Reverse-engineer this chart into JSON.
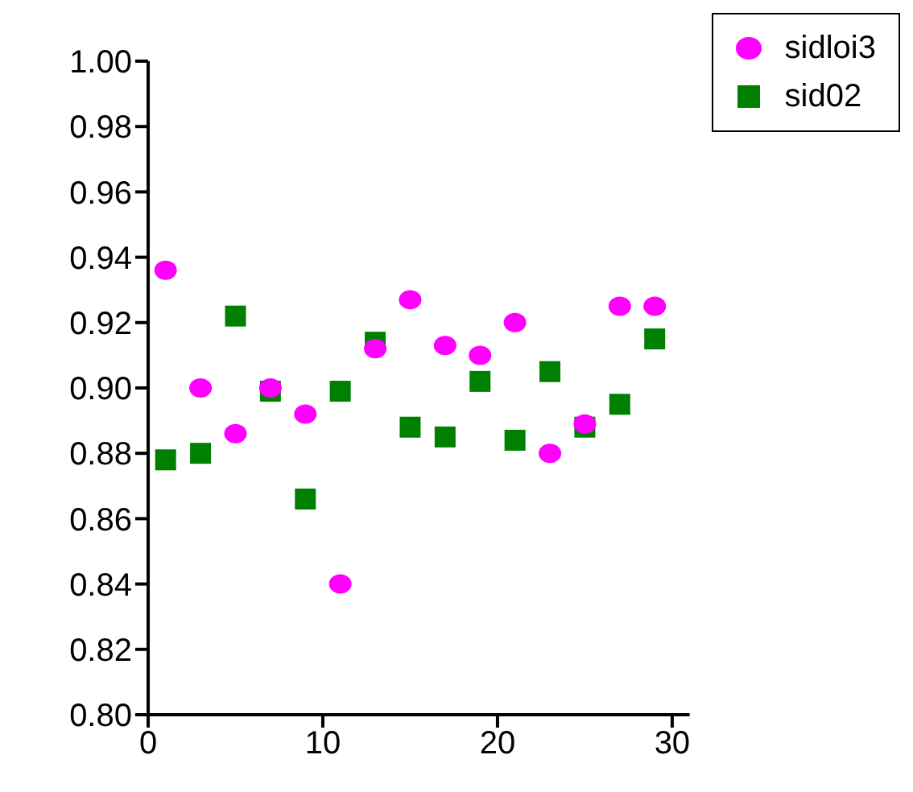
{
  "chart_data": {
    "type": "scatter",
    "x": [
      1,
      3,
      5,
      7,
      9,
      11,
      13,
      15,
      17,
      19,
      21,
      23,
      25,
      27,
      29
    ],
    "series": [
      {
        "name": "sidloi3",
        "color": "#ff00ff",
        "marker": "circle",
        "values": [
          0.936,
          0.9,
          0.886,
          0.9,
          0.892,
          0.84,
          0.912,
          0.927,
          0.913,
          0.91,
          0.92,
          0.88,
          0.889,
          0.925,
          0.925
        ]
      },
      {
        "name": "sid02",
        "color": "#008000",
        "marker": "square",
        "values": [
          0.878,
          0.88,
          0.922,
          0.899,
          0.866,
          0.899,
          0.914,
          0.888,
          0.885,
          0.902,
          0.884,
          0.905,
          0.888,
          0.895,
          0.915
        ]
      }
    ],
    "xlim": [
      0,
      31
    ],
    "xticks": [
      0,
      10,
      20,
      30
    ],
    "ylim": [
      0.8,
      1.0
    ],
    "yticks": [
      {
        "value": 0.8,
        "label": "0.80"
      },
      0.82,
      0.84,
      0.86,
      0.88,
      {
        "value": 0.9,
        "label": "0.90"
      },
      0.92,
      0.94,
      0.96,
      0.98,
      {
        "value": 1.0,
        "label": "1.00"
      }
    ],
    "grid": false,
    "legend": "top right"
  }
}
